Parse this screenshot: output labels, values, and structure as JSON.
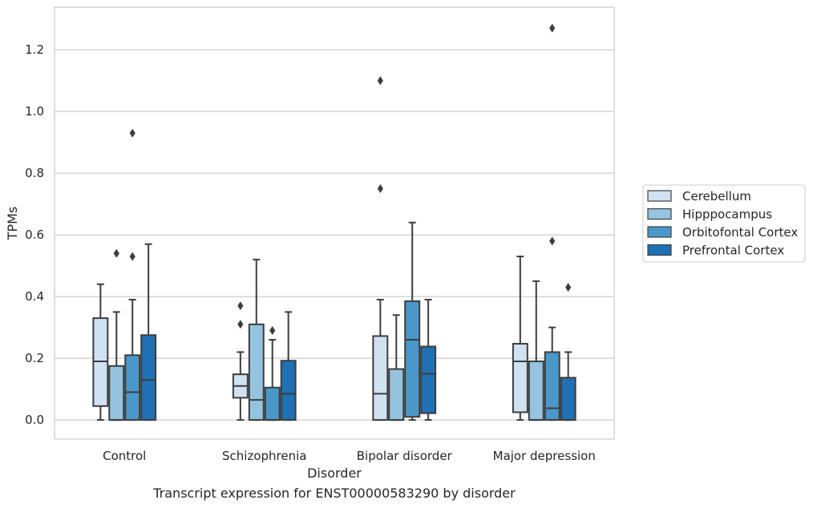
{
  "caption": "Transcript expression for ENST00000583290 by disorder",
  "chart_data": {
    "type": "box",
    "xlabel": "Disorder",
    "ylabel": "TPMs",
    "ylim": [
      -0.062,
      1.338
    ],
    "yticks": [
      0.0,
      0.2,
      0.4,
      0.6,
      0.8,
      1.0,
      1.2
    ],
    "ytick_labels": [
      "0.0",
      "0.2",
      "0.4",
      "0.6",
      "0.8",
      "1.0",
      "1.2"
    ],
    "grid": "horizontal",
    "legend_position": "right",
    "categories": [
      "Control",
      "Schizophrenia",
      "Bipolar disorder",
      "Major depression"
    ],
    "series": [
      {
        "name": "Cerebellum",
        "color": "#d0e1f2",
        "boxes": [
          {
            "whislo": 0.0,
            "q1": 0.045,
            "med": 0.19,
            "q3": 0.33,
            "whishi": 0.44,
            "fliers": []
          },
          {
            "whislo": 0.0,
            "q1": 0.072,
            "med": 0.11,
            "q3": 0.148,
            "whishi": 0.22,
            "fliers": [
              0.31,
              0.37
            ]
          },
          {
            "whislo": 0.0,
            "q1": 0.0,
            "med": 0.085,
            "q3": 0.272,
            "whishi": 0.39,
            "fliers": [
              0.75,
              1.1
            ]
          },
          {
            "whislo": 0.0,
            "q1": 0.025,
            "med": 0.19,
            "q3": 0.247,
            "whishi": 0.53,
            "fliers": []
          }
        ]
      },
      {
        "name": "Hipppocampus",
        "color": "#94c4df",
        "boxes": [
          {
            "whislo": 0.0,
            "q1": 0.0,
            "med": 0.0,
            "q3": 0.175,
            "whishi": 0.35,
            "fliers": [
              0.54
            ]
          },
          {
            "whislo": 0.0,
            "q1": 0.0,
            "med": 0.065,
            "q3": 0.31,
            "whishi": 0.52,
            "fliers": []
          },
          {
            "whislo": 0.0,
            "q1": 0.0,
            "med": 0.0,
            "q3": 0.165,
            "whishi": 0.34,
            "fliers": []
          },
          {
            "whislo": 0.0,
            "q1": 0.0,
            "med": 0.0,
            "q3": 0.19,
            "whishi": 0.45,
            "fliers": []
          }
        ]
      },
      {
        "name": "Orbitofontal Cortex",
        "color": "#4a98c9",
        "boxes": [
          {
            "whislo": 0.0,
            "q1": 0.0,
            "med": 0.09,
            "q3": 0.21,
            "whishi": 0.39,
            "fliers": [
              0.53,
              0.93
            ]
          },
          {
            "whislo": 0.0,
            "q1": 0.0,
            "med": 0.0,
            "q3": 0.105,
            "whishi": 0.26,
            "fliers": [
              0.29
            ]
          },
          {
            "whislo": 0.0,
            "q1": 0.01,
            "med": 0.26,
            "q3": 0.385,
            "whishi": 0.64,
            "fliers": []
          },
          {
            "whislo": 0.0,
            "q1": 0.0,
            "med": 0.038,
            "q3": 0.22,
            "whishi": 0.3,
            "fliers": [
              0.58,
              1.27
            ]
          }
        ]
      },
      {
        "name": "Prefrontal Cortex",
        "color": "#2070b4",
        "boxes": [
          {
            "whislo": 0.0,
            "q1": 0.0,
            "med": 0.13,
            "q3": 0.275,
            "whishi": 0.57,
            "fliers": []
          },
          {
            "whislo": 0.0,
            "q1": 0.0,
            "med": 0.085,
            "q3": 0.192,
            "whishi": 0.35,
            "fliers": []
          },
          {
            "whislo": 0.0,
            "q1": 0.022,
            "med": 0.15,
            "q3": 0.238,
            "whishi": 0.39,
            "fliers": []
          },
          {
            "whislo": 0.0,
            "q1": 0.0,
            "med": 0.0,
            "q3": 0.137,
            "whishi": 0.22,
            "fliers": [
              0.43
            ]
          }
        ]
      }
    ]
  }
}
